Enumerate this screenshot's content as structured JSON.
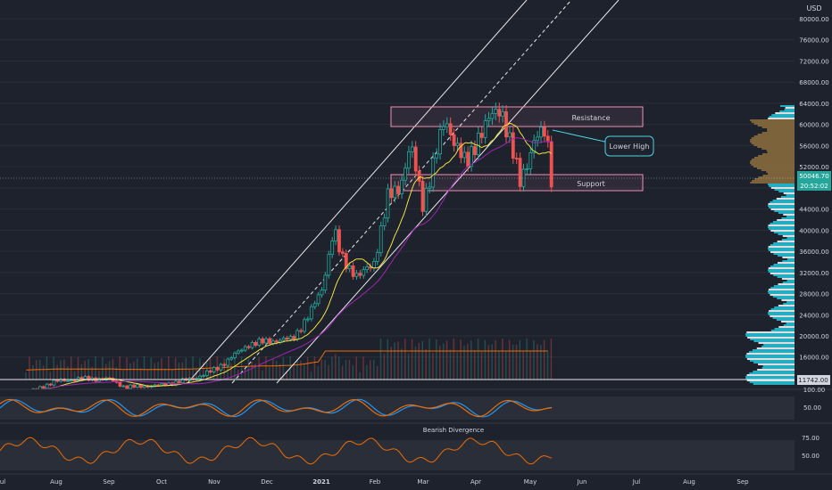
{
  "chart_data": {
    "type": "candlestick",
    "currency_label": "USD",
    "last_price_label": "50046.70",
    "countdown_label": "20:52:02",
    "baseline_price_label": "11742.00",
    "y_ticks": [
      "80000.00",
      "76000.00",
      "72000.00",
      "68000.00",
      "64000.00",
      "60000.00",
      "56000.00",
      "52000.00",
      "48000.00",
      "44000.00",
      "40000.00",
      "36000.00",
      "32000.00",
      "28000.00",
      "24000.00",
      "20000.00",
      "16000.00"
    ],
    "x_ticks": [
      "Jul",
      "Aug",
      "Sep",
      "Oct",
      "Nov",
      "Dec",
      "2021",
      "Feb",
      "Mar",
      "Apr",
      "May",
      "Jun",
      "Jul",
      "Aug",
      "Sep"
    ],
    "annotations": {
      "resistance": "Resistance",
      "support": "Support",
      "lower_high": "Lower High"
    },
    "stoch_panel": {
      "ticks": [
        "100.00",
        "50.00"
      ]
    },
    "rsi_panel": {
      "ticks": [
        "75.00",
        "50.00"
      ],
      "label": "Bearish Divergence"
    },
    "price_path": [
      [
        "2020-07-15",
        9200
      ],
      [
        "2020-08-01",
        11400
      ],
      [
        "2020-08-15",
        11900
      ],
      [
        "2020-09-01",
        11800
      ],
      [
        "2020-09-10",
        10300
      ],
      [
        "2020-10-01",
        10700
      ],
      [
        "2020-10-20",
        12000
      ],
      [
        "2020-11-01",
        13700
      ],
      [
        "2020-11-20",
        18400
      ],
      [
        "2020-12-01",
        19000
      ],
      [
        "2020-12-15",
        19400
      ],
      [
        "2020-12-25",
        24000
      ],
      [
        "2021-01-01",
        29000
      ],
      [
        "2021-01-08",
        40000
      ],
      [
        "2021-01-12",
        35000
      ],
      [
        "2021-01-22",
        31000
      ],
      [
        "2021-01-31",
        34000
      ],
      [
        "2021-02-08",
        46000
      ],
      [
        "2021-02-15",
        48500
      ],
      [
        "2021-02-21",
        56000
      ],
      [
        "2021-02-28",
        45000
      ],
      [
        "2021-03-13",
        61000
      ],
      [
        "2021-03-25",
        52000
      ],
      [
        "2021-04-01",
        58000
      ],
      [
        "2021-04-14",
        63500
      ],
      [
        "2021-04-25",
        49000
      ],
      [
        "2021-05-03",
        57000
      ],
      [
        "2021-05-10",
        58500
      ],
      [
        "2021-05-13",
        50046
      ]
    ],
    "colors": {
      "bull": "#26a69a",
      "bear": "#ef5350",
      "zone": "#f48fb1",
      "callout": "#4dd0e1",
      "rsi": "#ef6c00",
      "ma_fast": "#f0e442",
      "ma_slow": "#9c27b0"
    }
  }
}
